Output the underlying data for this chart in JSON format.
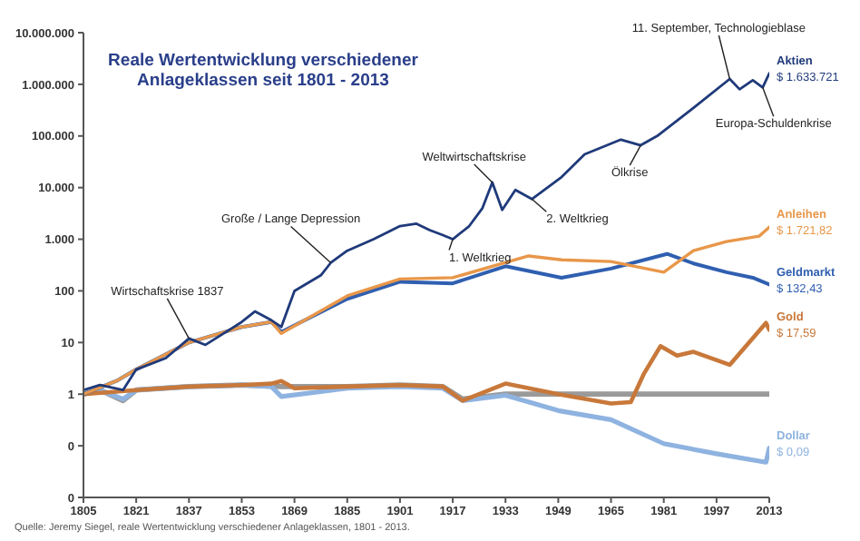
{
  "chart_data": {
    "type": "line",
    "title": "Reale Wertentwicklung verschiedener Anlageklassen seit 1801 - 2013",
    "log": true,
    "grid": false,
    "legend": false,
    "marker": "none",
    "xlim": [
      1805,
      2013
    ],
    "xticks": [
      1805,
      1821,
      1837,
      1853,
      1869,
      1885,
      1901,
      1917,
      1933,
      1949,
      1965,
      1981,
      1997,
      2013
    ],
    "ylim": [
      0.01,
      10000000
    ],
    "yticks": [
      {
        "value": 0.01,
        "label": "0"
      },
      {
        "value": 0.1,
        "label": "0"
      },
      1,
      10,
      100,
      {
        "value": 1000,
        "label": "1.000"
      },
      {
        "value": 10000,
        "label": "10.000"
      },
      {
        "value": 100000,
        "label": "100.000"
      },
      {
        "value": 1000000,
        "label": "1.000.000"
      },
      {
        "value": 10000000,
        "label": "10.000.000"
      }
    ],
    "series": [
      {
        "color": "#9a9a9a",
        "x": [
          1805,
          1810,
          1817,
          1821,
          1837,
          1853,
          1865,
          1885,
          1901,
          1914,
          1920,
          1933,
          2013
        ],
        "values": [
          1,
          1.2,
          0.75,
          1.2,
          1.4,
          1.5,
          1.4,
          1.4,
          1.5,
          1.4,
          0.8,
          1,
          1
        ]
      },
      {
        "name": "Dollar",
        "color": "#8fb3e0",
        "x": [
          1805,
          1810,
          1817,
          1821,
          1837,
          1853,
          1862,
          1865,
          1885,
          1901,
          1914,
          1920,
          1933,
          1949,
          1965,
          1981,
          1997,
          2012,
          2013
        ],
        "values": [
          1,
          1.2,
          0.8,
          1.2,
          1.4,
          1.5,
          1.4,
          0.9,
          1.3,
          1.4,
          1.3,
          0.75,
          0.95,
          0.48,
          0.32,
          0.11,
          0.07,
          0.048,
          0.09
        ],
        "value_labels": [
          null,
          null,
          null,
          null,
          null,
          null,
          null,
          null,
          null,
          null,
          null,
          null,
          null,
          null,
          null,
          null,
          null,
          null,
          "$ 0,09"
        ]
      },
      {
        "name": "Gold",
        "color": "#c8783a",
        "x": [
          1805,
          1821,
          1837,
          1853,
          1862,
          1865,
          1869,
          1885,
          1901,
          1914,
          1920,
          1933,
          1949,
          1965,
          1971,
          1975,
          1980,
          1985,
          1990,
          2001,
          2012,
          2013
        ],
        "values": [
          1,
          1.2,
          1.4,
          1.5,
          1.6,
          1.8,
          1.3,
          1.4,
          1.5,
          1.4,
          0.75,
          1.6,
          1.0,
          0.66,
          0.7,
          2.5,
          8.5,
          5.6,
          6.6,
          3.7,
          24,
          17.59
        ],
        "value_labels": [
          null,
          null,
          null,
          null,
          null,
          null,
          null,
          null,
          null,
          null,
          null,
          null,
          null,
          null,
          null,
          null,
          null,
          null,
          null,
          null,
          null,
          "$ 17,59"
        ]
      },
      {
        "name": "Geldmarkt",
        "color": "#2f5fb0",
        "x": [
          1805,
          1815,
          1821,
          1837,
          1853,
          1862,
          1865,
          1885,
          1901,
          1917,
          1933,
          1950,
          1965,
          1982,
          1990,
          2000,
          2008,
          2013
        ],
        "values": [
          1,
          1.8,
          3,
          10,
          20,
          25,
          16,
          70,
          150,
          140,
          300,
          180,
          270,
          520,
          340,
          230,
          180,
          132.43
        ],
        "value_labels": [
          null,
          null,
          null,
          null,
          null,
          null,
          null,
          null,
          null,
          null,
          null,
          null,
          null,
          null,
          null,
          null,
          null,
          "$ 132,43"
        ]
      },
      {
        "name": "Anleihen",
        "color": "#e8974a",
        "x": [
          1805,
          1815,
          1821,
          1837,
          1853,
          1862,
          1865,
          1885,
          1901,
          1917,
          1940,
          1950,
          1965,
          1981,
          1990,
          2000,
          2010,
          2013
        ],
        "values": [
          1,
          1.8,
          3,
          10,
          20,
          25,
          15,
          80,
          170,
          180,
          475,
          400,
          370,
          230,
          600,
          900,
          1150,
          1721.82
        ],
        "value_labels": [
          null,
          null,
          null,
          null,
          null,
          null,
          null,
          null,
          null,
          null,
          null,
          null,
          null,
          null,
          null,
          null,
          null,
          "$ 1.721,82"
        ]
      },
      {
        "name": "Aktien",
        "color": "#1f3a7a",
        "x": [
          1805,
          1810,
          1817,
          1821,
          1830,
          1837,
          1842,
          1853,
          1857,
          1862,
          1865,
          1869,
          1877,
          1880,
          1885,
          1893,
          1901,
          1906,
          1910,
          1914,
          1917,
          1922,
          1926,
          1929,
          1932,
          1936,
          1941,
          1950,
          1957,
          1968,
          1974,
          1979,
          1990,
          2001,
          2004,
          2008,
          2011,
          2013
        ],
        "values": [
          1.2,
          1.5,
          1.2,
          3,
          5,
          12,
          9,
          25,
          40,
          27,
          20,
          100,
          200,
          350,
          600,
          1000,
          1800,
          2000,
          1500,
          1200,
          1000,
          1800,
          4000,
          12600,
          3700,
          9000,
          6000,
          16000,
          44000,
          85000,
          66000,
          100000,
          350000,
          1270000,
          800000,
          1200000,
          870000,
          1633721
        ],
        "value_labels": [
          null,
          null,
          null,
          null,
          null,
          null,
          null,
          null,
          null,
          null,
          null,
          null,
          null,
          null,
          null,
          null,
          null,
          null,
          null,
          null,
          null,
          null,
          null,
          null,
          null,
          null,
          null,
          null,
          null,
          null,
          null,
          null,
          null,
          null,
          null,
          null,
          null,
          "$ 1.633.721"
        ]
      }
    ],
    "annotations": [
      {
        "text": "Wirtschaftskrise 1837",
        "x": 1837,
        "y": 12
      },
      {
        "text": "Große / Lange Depression",
        "x": 1880,
        "y": 350
      },
      {
        "text": "1. Weltkrieg",
        "x": 1917,
        "y": 1000
      },
      {
        "text": "Weltwirtschaftskrise",
        "x": 1929,
        "y": 12600
      },
      {
        "text": "2. Weltkrieg",
        "x": 1941,
        "y": 6000
      },
      {
        "text": "Ölkrise",
        "x": 1974,
        "y": 66000
      },
      {
        "text": "11. September, Technologieblase",
        "x": 2001,
        "y": 1270000
      },
      {
        "text": "Europa-Schuldenkrise",
        "x": 2011,
        "y": 870000
      },
      "Quelle: Jeremy Siegel, reale Wertentwicklung verschiedener Anlageklassen, 1801 - 2013."
    ]
  }
}
